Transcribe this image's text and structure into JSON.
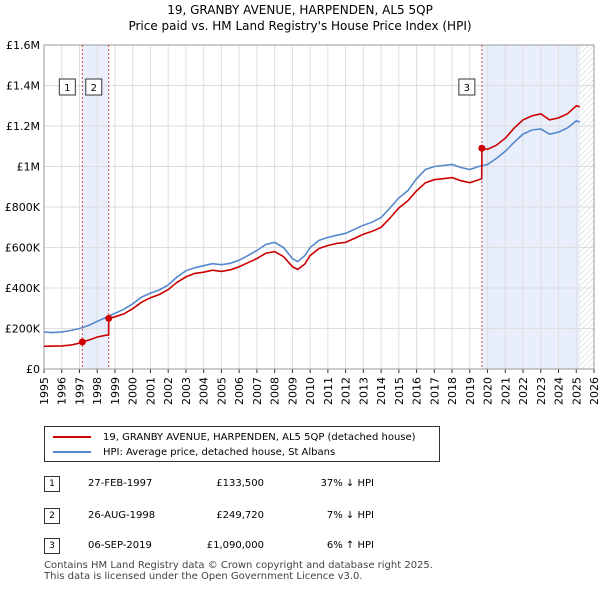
{
  "chart_data": {
    "type": "line",
    "title": "19, GRANBY AVENUE, HARPENDEN, AL5 5QP",
    "subtitle": "Price paid vs. HM Land Registry's House Price Index (HPI)",
    "xlabel": "",
    "ylabel": "",
    "xlim": [
      1995,
      2026
    ],
    "ylim": [
      0,
      1600000
    ],
    "x_ticks": [
      1995,
      1996,
      1997,
      1998,
      1999,
      2000,
      2001,
      2002,
      2003,
      2004,
      2005,
      2006,
      2007,
      2008,
      2009,
      2010,
      2011,
      2012,
      2013,
      2014,
      2015,
      2016,
      2017,
      2018,
      2019,
      2020,
      2021,
      2022,
      2023,
      2024,
      2025,
      2026
    ],
    "y_ticks": [
      {
        "value": 0,
        "label": "£0"
      },
      {
        "value": 200000,
        "label": "£200K"
      },
      {
        "value": 400000,
        "label": "£400K"
      },
      {
        "value": 600000,
        "label": "£600K"
      },
      {
        "value": 800000,
        "label": "£800K"
      },
      {
        "value": 1000000,
        "label": "£1M"
      },
      {
        "value": 1200000,
        "label": "£1.2M"
      },
      {
        "value": 1400000,
        "label": "£1.4M"
      },
      {
        "value": 1600000,
        "label": "£1.6M"
      }
    ],
    "grid": true,
    "shaded_regions": [
      [
        1997.16,
        1998.65
      ],
      [
        2019.68,
        2025.2
      ]
    ],
    "hatched_region": [
      2025.2,
      2026
    ],
    "series": [
      {
        "name": "19, GRANBY AVENUE, HARPENDEN, AL5 5QP (detached house)",
        "color": "#cc0000",
        "points": [
          [
            1995.0,
            112000
          ],
          [
            1995.5,
            113000
          ],
          [
            1996.0,
            114000
          ],
          [
            1996.5,
            118000
          ],
          [
            1997.0,
            128000
          ],
          [
            1997.16,
            133500
          ],
          [
            1997.5,
            142000
          ],
          [
            1998.0,
            158000
          ],
          [
            1998.5,
            167000
          ],
          [
            1998.64,
            168000
          ],
          [
            1998.65,
            249720
          ],
          [
            1999.0,
            258000
          ],
          [
            1999.5,
            272000
          ],
          [
            2000.0,
            298000
          ],
          [
            2000.5,
            330000
          ],
          [
            2001.0,
            352000
          ],
          [
            2001.5,
            368000
          ],
          [
            2002.0,
            392000
          ],
          [
            2002.5,
            428000
          ],
          [
            2003.0,
            455000
          ],
          [
            2003.5,
            472000
          ],
          [
            2004.0,
            478000
          ],
          [
            2004.5,
            488000
          ],
          [
            2005.0,
            482000
          ],
          [
            2005.5,
            490000
          ],
          [
            2006.0,
            505000
          ],
          [
            2006.5,
            525000
          ],
          [
            2007.0,
            545000
          ],
          [
            2007.5,
            572000
          ],
          [
            2008.0,
            580000
          ],
          [
            2008.5,
            555000
          ],
          [
            2009.0,
            505000
          ],
          [
            2009.3,
            492000
          ],
          [
            2009.7,
            518000
          ],
          [
            2010.0,
            560000
          ],
          [
            2010.5,
            595000
          ],
          [
            2011.0,
            610000
          ],
          [
            2011.5,
            620000
          ],
          [
            2012.0,
            625000
          ],
          [
            2012.5,
            645000
          ],
          [
            2013.0,
            665000
          ],
          [
            2013.5,
            680000
          ],
          [
            2014.0,
            700000
          ],
          [
            2014.5,
            745000
          ],
          [
            2015.0,
            795000
          ],
          [
            2015.5,
            830000
          ],
          [
            2016.0,
            880000
          ],
          [
            2016.5,
            920000
          ],
          [
            2017.0,
            935000
          ],
          [
            2017.5,
            940000
          ],
          [
            2018.0,
            945000
          ],
          [
            2018.5,
            930000
          ],
          [
            2019.0,
            920000
          ],
          [
            2019.5,
            935000
          ],
          [
            2019.67,
            940000
          ],
          [
            2019.68,
            1090000
          ],
          [
            2020.0,
            1085000
          ],
          [
            2020.5,
            1105000
          ],
          [
            2021.0,
            1140000
          ],
          [
            2021.5,
            1190000
          ],
          [
            2022.0,
            1230000
          ],
          [
            2022.5,
            1250000
          ],
          [
            2023.0,
            1260000
          ],
          [
            2023.5,
            1230000
          ],
          [
            2024.0,
            1240000
          ],
          [
            2024.5,
            1260000
          ],
          [
            2025.0,
            1300000
          ],
          [
            2025.2,
            1295000
          ]
        ]
      },
      {
        "name": "HPI: Average price, detached house, St Albans",
        "color": "#5588cc",
        "points": [
          [
            1995.0,
            182000
          ],
          [
            1995.5,
            180000
          ],
          [
            1996.0,
            183000
          ],
          [
            1996.5,
            190000
          ],
          [
            1997.0,
            200000
          ],
          [
            1997.5,
            215000
          ],
          [
            1998.0,
            235000
          ],
          [
            1998.5,
            255000
          ],
          [
            1999.0,
            275000
          ],
          [
            1999.5,
            295000
          ],
          [
            2000.0,
            322000
          ],
          [
            2000.5,
            355000
          ],
          [
            2001.0,
            375000
          ],
          [
            2001.5,
            390000
          ],
          [
            2002.0,
            415000
          ],
          [
            2002.5,
            455000
          ],
          [
            2003.0,
            485000
          ],
          [
            2003.5,
            500000
          ],
          [
            2004.0,
            510000
          ],
          [
            2004.5,
            520000
          ],
          [
            2005.0,
            515000
          ],
          [
            2005.5,
            522000
          ],
          [
            2006.0,
            538000
          ],
          [
            2006.5,
            560000
          ],
          [
            2007.0,
            585000
          ],
          [
            2007.5,
            615000
          ],
          [
            2008.0,
            625000
          ],
          [
            2008.5,
            600000
          ],
          [
            2009.0,
            545000
          ],
          [
            2009.3,
            530000
          ],
          [
            2009.7,
            560000
          ],
          [
            2010.0,
            600000
          ],
          [
            2010.5,
            635000
          ],
          [
            2011.0,
            650000
          ],
          [
            2011.5,
            660000
          ],
          [
            2012.0,
            670000
          ],
          [
            2012.5,
            690000
          ],
          [
            2013.0,
            710000
          ],
          [
            2013.5,
            725000
          ],
          [
            2014.0,
            748000
          ],
          [
            2014.5,
            795000
          ],
          [
            2015.0,
            845000
          ],
          [
            2015.5,
            880000
          ],
          [
            2016.0,
            940000
          ],
          [
            2016.5,
            985000
          ],
          [
            2017.0,
            1000000
          ],
          [
            2017.5,
            1005000
          ],
          [
            2018.0,
            1010000
          ],
          [
            2018.5,
            995000
          ],
          [
            2019.0,
            985000
          ],
          [
            2019.5,
            1000000
          ],
          [
            2020.0,
            1010000
          ],
          [
            2020.5,
            1040000
          ],
          [
            2021.0,
            1075000
          ],
          [
            2021.5,
            1120000
          ],
          [
            2022.0,
            1160000
          ],
          [
            2022.5,
            1180000
          ],
          [
            2023.0,
            1185000
          ],
          [
            2023.5,
            1160000
          ],
          [
            2024.0,
            1170000
          ],
          [
            2024.5,
            1190000
          ],
          [
            2025.0,
            1225000
          ],
          [
            2025.2,
            1220000
          ]
        ]
      }
    ],
    "transactions": [
      {
        "label": "1",
        "x": 1997.16,
        "y": 133500,
        "date": "27-FEB-1997",
        "price": "£133,500",
        "hpi": "37% ↓ HPI"
      },
      {
        "label": "2",
        "x": 1998.65,
        "y": 249720,
        "date": "26-AUG-1998",
        "price": "£249,720",
        "hpi": "7% ↓ HPI"
      },
      {
        "label": "3",
        "x": 2019.68,
        "y": 1090000,
        "date": "06-SEP-2019",
        "price": "£1,090,000",
        "hpi": "6% ↑ HPI"
      }
    ]
  },
  "legend": {
    "property": "19, GRANBY AVENUE, HARPENDEN, AL5 5QP (detached house)",
    "hpi": "HPI: Average price, detached house, St Albans"
  },
  "footer": {
    "line1": "Contains HM Land Registry data © Crown copyright and database right 2025.",
    "line2": "This data is licensed under the Open Government Licence v3.0."
  },
  "colors": {
    "property_line": "#cc0000",
    "hpi_line": "#5588cc",
    "shade": "#e8eefb",
    "grid": "#dddddd",
    "marker_dash": "#cc4444"
  }
}
